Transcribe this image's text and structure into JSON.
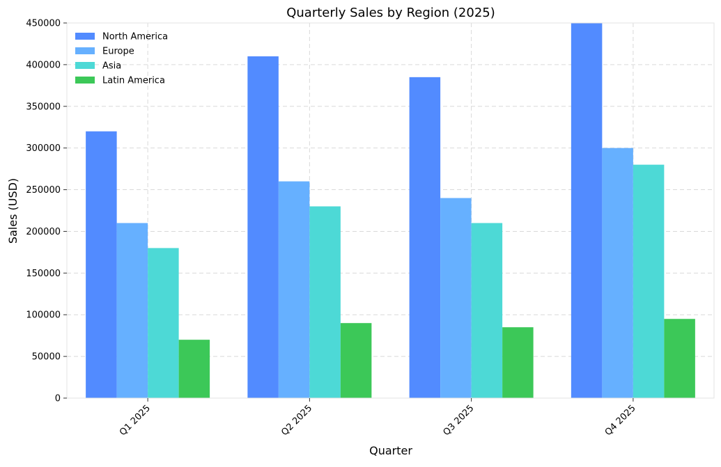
{
  "chart_data": {
    "type": "bar",
    "title": "Quarterly Sales by Region (2025)",
    "xlabel": "Quarter",
    "ylabel": "Sales (USD)",
    "categories": [
      "Q1 2025",
      "Q2 2025",
      "Q3 2025",
      "Q4 2025"
    ],
    "ylim": [
      0,
      450000
    ],
    "yticks": [
      0,
      50000,
      100000,
      150000,
      200000,
      250000,
      300000,
      350000,
      400000,
      450000
    ],
    "grid": true,
    "legend_position": "top-left",
    "series": [
      {
        "name": "North America",
        "color": "#528bff",
        "values": [
          320000,
          410000,
          385000,
          450000
        ]
      },
      {
        "name": "Europe",
        "color": "#66b0ff",
        "values": [
          210000,
          260000,
          240000,
          300000
        ]
      },
      {
        "name": "Asia",
        "color": "#4dd9d6",
        "values": [
          180000,
          230000,
          210000,
          280000
        ]
      },
      {
        "name": "Latin America",
        "color": "#3cc858",
        "values": [
          70000,
          90000,
          85000,
          95000
        ]
      }
    ]
  }
}
